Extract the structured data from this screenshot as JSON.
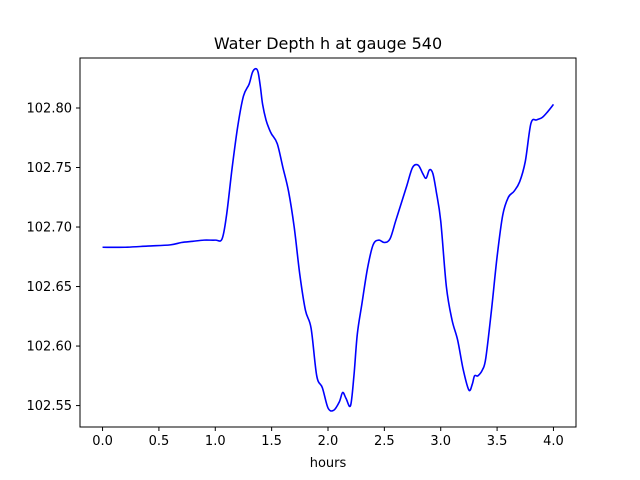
{
  "chart_data": {
    "type": "line",
    "title": "Water Depth h at gauge 540",
    "xlabel": "hours",
    "ylabel": "",
    "xlim": [
      -0.2,
      4.2
    ],
    "ylim": [
      102.532,
      102.842
    ],
    "xticks": [
      0.0,
      0.5,
      1.0,
      1.5,
      2.0,
      2.5,
      3.0,
      3.5,
      4.0
    ],
    "xtick_labels": [
      "0.0",
      "0.5",
      "1.0",
      "1.5",
      "2.0",
      "2.5",
      "3.0",
      "3.5",
      "4.0"
    ],
    "yticks": [
      102.55,
      102.6,
      102.65,
      102.7,
      102.75,
      102.8
    ],
    "ytick_labels": [
      "102.55",
      "102.60",
      "102.65",
      "102.70",
      "102.75",
      "102.80"
    ],
    "grid": false,
    "line_color": "#0000ff",
    "series": [
      {
        "x": [
          0.0,
          0.2,
          0.4,
          0.6,
          0.7,
          0.8,
          0.9,
          1.0,
          1.06,
          1.1,
          1.15,
          1.2,
          1.25,
          1.3,
          1.33,
          1.36,
          1.38,
          1.4,
          1.42,
          1.45,
          1.48,
          1.5,
          1.55,
          1.6,
          1.65,
          1.7,
          1.75,
          1.8,
          1.85,
          1.9,
          1.95,
          2.0,
          2.05,
          2.1,
          2.13,
          2.16,
          2.2,
          2.23,
          2.26,
          2.3,
          2.35,
          2.4,
          2.45,
          2.5,
          2.55,
          2.6,
          2.65,
          2.7,
          2.75,
          2.8,
          2.84,
          2.87,
          2.9,
          2.93,
          2.96,
          3.0,
          3.05,
          3.1,
          3.15,
          3.2,
          3.25,
          3.28,
          3.3,
          3.33,
          3.37,
          3.4,
          3.45,
          3.5,
          3.55,
          3.6,
          3.65,
          3.7,
          3.75,
          3.8,
          3.85,
          3.9,
          3.95,
          4.0
        ],
        "y": [
          102.683,
          102.683,
          102.684,
          102.685,
          102.687,
          102.688,
          102.689,
          102.689,
          102.69,
          102.71,
          102.75,
          102.785,
          102.81,
          102.82,
          102.83,
          102.833,
          102.83,
          102.818,
          102.803,
          102.79,
          102.782,
          102.778,
          102.77,
          102.75,
          102.73,
          102.7,
          102.66,
          102.63,
          102.615,
          102.575,
          102.565,
          102.548,
          102.546,
          102.553,
          102.561,
          102.556,
          102.55,
          102.575,
          102.61,
          102.635,
          102.665,
          102.685,
          102.689,
          102.687,
          102.69,
          102.705,
          102.72,
          102.735,
          102.75,
          102.752,
          102.745,
          102.741,
          102.748,
          102.745,
          102.73,
          102.705,
          102.65,
          102.622,
          102.605,
          102.58,
          102.563,
          102.568,
          102.575,
          102.575,
          102.58,
          102.59,
          102.63,
          102.675,
          102.71,
          102.725,
          102.73,
          102.738,
          102.755,
          102.787,
          102.79,
          102.792,
          102.797,
          102.803
        ]
      }
    ]
  }
}
